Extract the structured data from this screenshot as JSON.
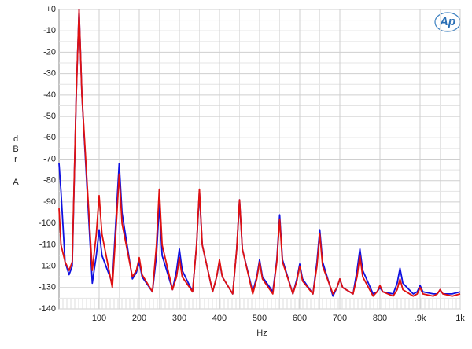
{
  "chart_data": {
    "type": "line",
    "xlabel": "Hz",
    "ylabel": "dBr A",
    "logo": "Ap",
    "grid": true,
    "xlim": [
      0,
      1000
    ],
    "ylim": [
      -140,
      0
    ],
    "xticks": [
      100,
      200,
      300,
      400,
      500,
      600,
      700,
      800,
      {
        "value": 900,
        "label": ".9k"
      },
      {
        "value": 1000,
        "label": "1k"
      }
    ],
    "yticks": [
      {
        "value": 0,
        "label": "+0"
      },
      -10,
      -20,
      -30,
      -40,
      -50,
      -60,
      -70,
      -80,
      -90,
      -100,
      -110,
      -120,
      -130,
      -140
    ],
    "x": [
      0,
      5,
      15,
      25,
      33,
      43,
      50,
      57,
      83,
      93,
      100,
      107,
      133,
      143,
      150,
      157,
      183,
      193,
      200,
      207,
      233,
      243,
      250,
      257,
      283,
      293,
      300,
      307,
      333,
      343,
      350,
      357,
      383,
      393,
      400,
      407,
      433,
      443,
      450,
      457,
      483,
      493,
      500,
      507,
      533,
      543,
      550,
      557,
      583,
      593,
      600,
      607,
      633,
      643,
      650,
      657,
      683,
      693,
      700,
      707,
      733,
      743,
      750,
      757,
      783,
      793,
      800,
      807,
      833,
      843,
      850,
      857,
      883,
      893,
      900,
      907,
      933,
      943,
      950,
      957,
      980,
      1000
    ],
    "series": [
      {
        "color": "#1010e0",
        "values": [
          -72,
          -85,
          -118,
          -124,
          -120,
          -40,
          0,
          -40,
          -128,
          -115,
          -103,
          -115,
          -128,
          -95,
          -72,
          -95,
          -126,
          -123,
          -118,
          -125,
          -132,
          -115,
          -91,
          -115,
          -131,
          -122,
          -112,
          -122,
          -132,
          -110,
          -85,
          -110,
          -132,
          -125,
          -118,
          -125,
          -133,
          -112,
          -89,
          -112,
          -132,
          -125,
          -117,
          -125,
          -132,
          -117,
          -96,
          -117,
          -133,
          -126,
          -119,
          -126,
          -133,
          -118,
          -103,
          -118,
          -134,
          -130,
          -126,
          -130,
          -133,
          -122,
          -112,
          -122,
          -133,
          -132,
          -130,
          -132,
          -133,
          -128,
          -121,
          -128,
          -133,
          -132,
          -129,
          -132,
          -133,
          -133,
          -131,
          -133,
          -133,
          -132
        ]
      },
      {
        "color": "#e01010",
        "values": [
          -93,
          -110,
          -118,
          -122,
          -118,
          -40,
          0,
          -40,
          -122,
          -105,
          -87,
          -105,
          -130,
          -100,
          -77,
          -100,
          -125,
          -122,
          -116,
          -124,
          -132,
          -110,
          -84,
          -110,
          -131,
          -125,
          -116,
          -125,
          -132,
          -110,
          -84,
          -110,
          -132,
          -125,
          -117,
          -125,
          -133,
          -112,
          -89,
          -112,
          -133,
          -126,
          -118,
          -126,
          -133,
          -118,
          -98,
          -118,
          -133,
          -127,
          -120,
          -127,
          -133,
          -120,
          -105,
          -120,
          -133,
          -130,
          -126,
          -130,
          -133,
          -125,
          -115,
          -125,
          -134,
          -132,
          -129,
          -132,
          -134,
          -131,
          -126,
          -131,
          -134,
          -133,
          -130,
          -133,
          -134,
          -133,
          -131,
          -133,
          -134,
          -133
        ]
      }
    ]
  }
}
